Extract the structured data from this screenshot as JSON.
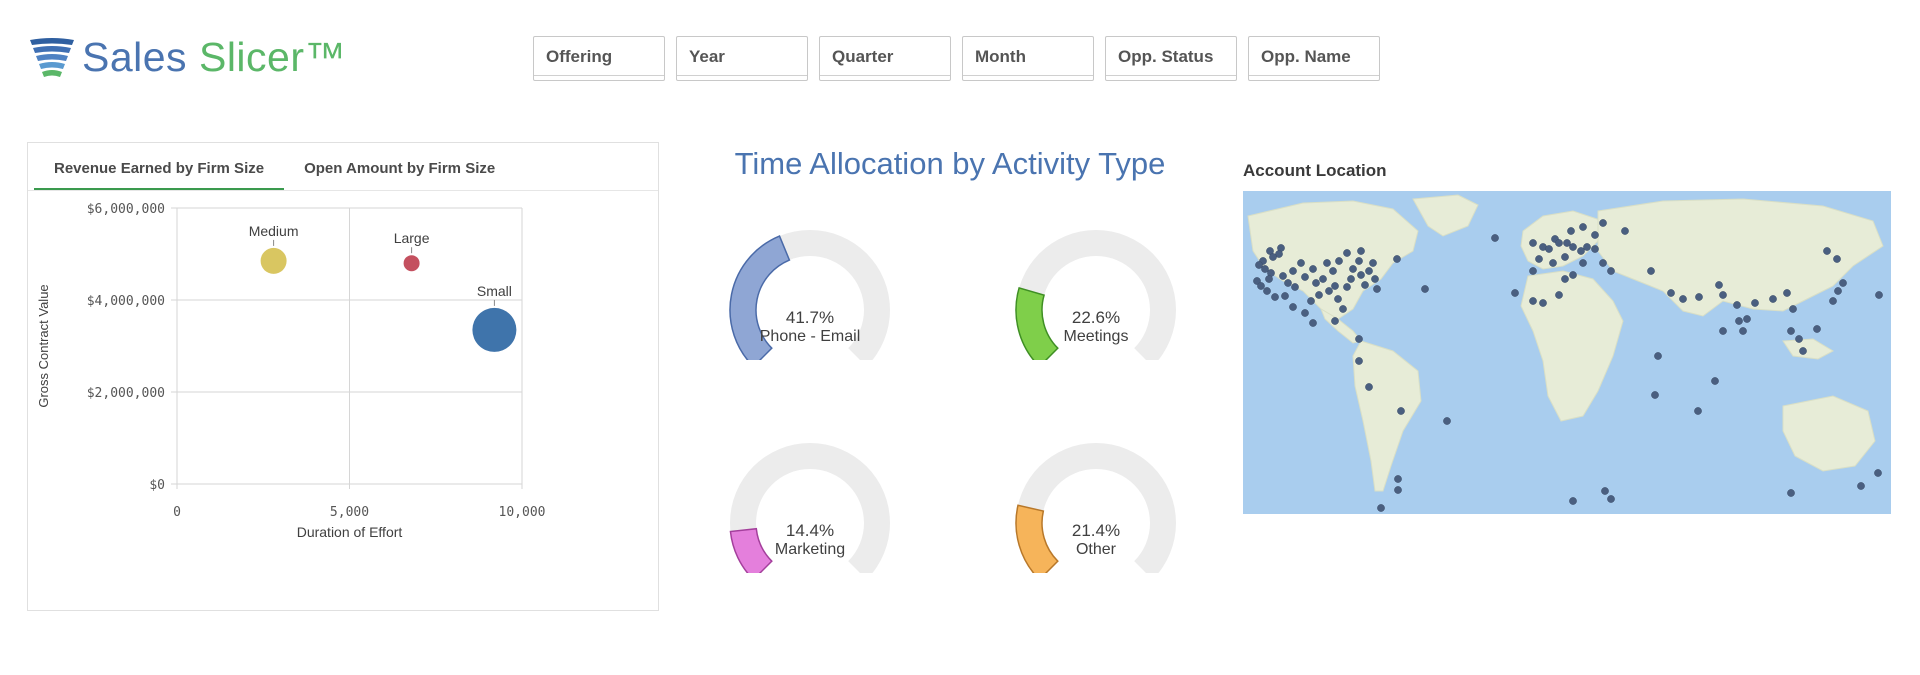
{
  "app": {
    "logo": {
      "word1": "Sales",
      "word2": "Slicer",
      "mark": "™"
    },
    "colors": {
      "brand_blue": "#4a74b0",
      "brand_green": "#5bb768",
      "accent_tab": "#3a9a4e"
    }
  },
  "filters": [
    {
      "label": "Offering"
    },
    {
      "label": "Year"
    },
    {
      "label": "Quarter"
    },
    {
      "label": "Month"
    },
    {
      "label": "Opp. Status"
    },
    {
      "label": "Opp. Name"
    }
  ],
  "left_panel": {
    "tabs": [
      {
        "label": "Revenue Earned by Firm Size",
        "active": true
      },
      {
        "label": "Open Amount by Firm Size",
        "active": false
      }
    ]
  },
  "gauges": {
    "title": "Time Allocation by Activity Type",
    "items": [
      {
        "value_text": "41.7%",
        "label": "Phone - Email",
        "value": 0.417,
        "color": "#8fa6d4",
        "stroke": "#4a6aa8"
      },
      {
        "value_text": "22.6%",
        "label": "Meetings",
        "value": 0.226,
        "color": "#7fcf4a",
        "stroke": "#3f8f24"
      },
      {
        "value_text": "14.4%",
        "label": "Marketing",
        "value": 0.144,
        "color": "#e47fdc",
        "stroke": "#a43f9c"
      },
      {
        "value_text": "21.4%",
        "label": "Other",
        "value": 0.214,
        "color": "#f6b45a",
        "stroke": "#b8782a"
      }
    ]
  },
  "map": {
    "title": "Account Location",
    "colors": {
      "water": "#a9cdee",
      "land": "#e6ecd6",
      "dot": "#4a5f80"
    }
  },
  "chart_data": {
    "type": "scatter",
    "title": "",
    "xlabel": "Duration of Effort",
    "ylabel": "Gross Contract Value",
    "xlim": [
      0,
      10000
    ],
    "ylim": [
      0,
      6000000
    ],
    "x_ticks": [
      "0",
      "5,000",
      "10,000"
    ],
    "y_ticks": [
      "$0",
      "$2,000,000",
      "$4,000,000",
      "$6,000,000"
    ],
    "grid": true,
    "series": [
      {
        "name": "Medium",
        "x": 2800,
        "y": 4850000,
        "color": "#d9c661"
      },
      {
        "name": "Large",
        "x": 6800,
        "y": 4800000,
        "color": "#c4505f"
      },
      {
        "name": "Small",
        "x": 9200,
        "y": 3350000,
        "color": "#3f74ab"
      }
    ]
  }
}
